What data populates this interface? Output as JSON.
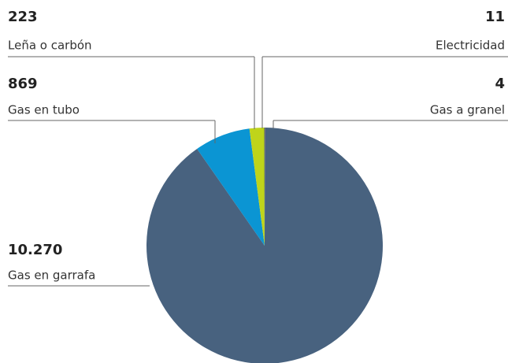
{
  "chart_data": {
    "type": "pie",
    "categories": [
      "Gas a granel",
      "Gas en garrafa",
      "Gas en tubo",
      "Leña o carbón",
      "Electricidad"
    ],
    "values": [
      4,
      10270,
      869,
      223,
      11
    ],
    "value_labels": [
      "4",
      "10.270",
      "869",
      "223",
      "11"
    ],
    "colors": [
      "#d9473a",
      "#48627f",
      "#0b95d3",
      "#bfd41a",
      "#6d8f2a"
    ]
  }
}
